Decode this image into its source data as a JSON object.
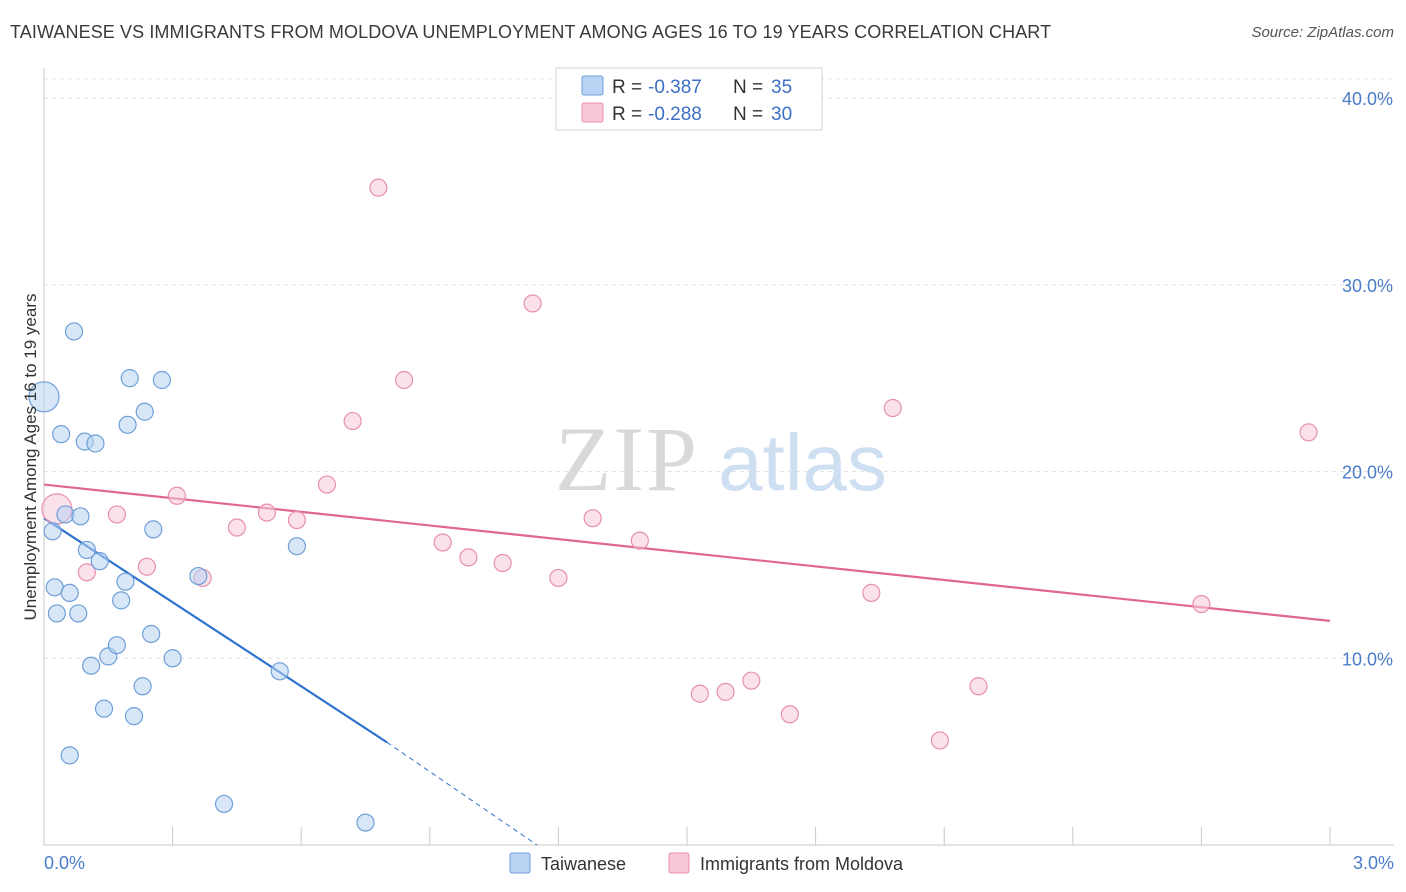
{
  "header": {
    "title": "TAIWANESE VS IMMIGRANTS FROM MOLDOVA UNEMPLOYMENT AMONG AGES 16 TO 19 YEARS CORRELATION CHART",
    "source": "Source: ZipAtlas.com"
  },
  "watermark": {
    "zip": "ZIP",
    "atlas": "atlas"
  },
  "legend": {
    "r_label": "R =",
    "n_label": "N =",
    "rows": [
      {
        "r": "-0.387",
        "n": "35"
      },
      {
        "r": "-0.288",
        "n": "30"
      }
    ]
  },
  "colors": {
    "taiwanese_fill": "#b8d3f3",
    "taiwanese_stroke": "#6f9fd8",
    "taiwanese_line": "#2f73cf",
    "moldova_fill": "#f8c8d8",
    "moldova_stroke": "#e88fae",
    "moldova_line": "#e06694"
  },
  "chart_data": {
    "type": "scatter",
    "title": "TAIWANESE VS IMMIGRANTS FROM MOLDOVA UNEMPLOYMENT AMONG AGES 16 TO 19 YEARS CORRELATION CHART",
    "xlabel": "",
    "ylabel": "Unemployment Among Ages 16 to 19 years",
    "xlim": [
      0,
      3.0
    ],
    "ylim": [
      0,
      41.5
    ],
    "x_tick_labels": {
      "left": "0.0%",
      "right": "3.0%"
    },
    "y_ticks": [
      {
        "value": 10,
        "label": "10.0%"
      },
      {
        "value": 20,
        "label": "20.0%"
      },
      {
        "value": 30,
        "label": "30.0%"
      },
      {
        "value": 40,
        "label": "40.0%"
      }
    ],
    "series": [
      {
        "name": "Taiwanese",
        "r": -0.387,
        "n": 35,
        "points": [
          {
            "x": 0.0,
            "y": 24.0,
            "big": true
          },
          {
            "x": 0.02,
            "y": 16.8
          },
          {
            "x": 0.025,
            "y": 13.8
          },
          {
            "x": 0.03,
            "y": 12.4
          },
          {
            "x": 0.04,
            "y": 22.0
          },
          {
            "x": 0.05,
            "y": 17.7
          },
          {
            "x": 0.06,
            "y": 13.5
          },
          {
            "x": 0.06,
            "y": 4.8
          },
          {
            "x": 0.07,
            "y": 27.5
          },
          {
            "x": 0.08,
            "y": 12.4
          },
          {
            "x": 0.085,
            "y": 17.6
          },
          {
            "x": 0.095,
            "y": 21.6
          },
          {
            "x": 0.1,
            "y": 15.8
          },
          {
            "x": 0.11,
            "y": 9.6
          },
          {
            "x": 0.12,
            "y": 21.5
          },
          {
            "x": 0.13,
            "y": 15.2
          },
          {
            "x": 0.14,
            "y": 7.3
          },
          {
            "x": 0.15,
            "y": 10.1
          },
          {
            "x": 0.17,
            "y": 10.7
          },
          {
            "x": 0.18,
            "y": 13.1
          },
          {
            "x": 0.19,
            "y": 14.1
          },
          {
            "x": 0.195,
            "y": 22.5
          },
          {
            "x": 0.2,
            "y": 25.0
          },
          {
            "x": 0.21,
            "y": 6.9
          },
          {
            "x": 0.23,
            "y": 8.5
          },
          {
            "x": 0.235,
            "y": 23.2
          },
          {
            "x": 0.25,
            "y": 11.3
          },
          {
            "x": 0.255,
            "y": 16.9
          },
          {
            "x": 0.275,
            "y": 24.9
          },
          {
            "x": 0.3,
            "y": 10.0
          },
          {
            "x": 0.36,
            "y": 14.4
          },
          {
            "x": 0.42,
            "y": 2.2
          },
          {
            "x": 0.55,
            "y": 9.3
          },
          {
            "x": 0.59,
            "y": 16.0
          },
          {
            "x": 0.75,
            "y": 1.2
          }
        ],
        "trend": {
          "x0": 0.0,
          "y0": 17.5,
          "x1": 0.8,
          "y1": 5.5,
          "dash_to_x": 1.15,
          "dash_to_y": 0.0
        }
      },
      {
        "name": "Immigrants from Moldova",
        "r": -0.288,
        "n": 30,
        "points": [
          {
            "x": 0.03,
            "y": 18.0,
            "big": true
          },
          {
            "x": 0.1,
            "y": 14.6
          },
          {
            "x": 0.17,
            "y": 17.7
          },
          {
            "x": 0.24,
            "y": 14.9
          },
          {
            "x": 0.31,
            "y": 18.7
          },
          {
            "x": 0.37,
            "y": 14.3
          },
          {
            "x": 0.45,
            "y": 17.0
          },
          {
            "x": 0.52,
            "y": 17.8
          },
          {
            "x": 0.59,
            "y": 17.4
          },
          {
            "x": 0.66,
            "y": 19.3
          },
          {
            "x": 0.72,
            "y": 22.7
          },
          {
            "x": 0.78,
            "y": 35.2
          },
          {
            "x": 0.84,
            "y": 24.9
          },
          {
            "x": 0.93,
            "y": 16.2
          },
          {
            "x": 0.99,
            "y": 15.4
          },
          {
            "x": 1.07,
            "y": 15.1
          },
          {
            "x": 1.14,
            "y": 29.0
          },
          {
            "x": 1.2,
            "y": 14.3
          },
          {
            "x": 1.28,
            "y": 17.5
          },
          {
            "x": 1.39,
            "y": 16.3
          },
          {
            "x": 1.53,
            "y": 8.1
          },
          {
            "x": 1.59,
            "y": 8.2
          },
          {
            "x": 1.65,
            "y": 8.8
          },
          {
            "x": 1.74,
            "y": 7.0
          },
          {
            "x": 1.93,
            "y": 13.5
          },
          {
            "x": 1.98,
            "y": 23.4
          },
          {
            "x": 2.09,
            "y": 5.6
          },
          {
            "x": 2.18,
            "y": 8.5
          },
          {
            "x": 2.7,
            "y": 12.9
          },
          {
            "x": 2.95,
            "y": 22.1
          }
        ],
        "trend": {
          "x0": 0.0,
          "y0": 19.3,
          "x1": 3.0,
          "y1": 12.0
        }
      }
    ],
    "legend_position": "top-center",
    "bottom_legend": [
      "Taiwanese",
      "Immigrants from Moldova"
    ],
    "grid": true
  }
}
